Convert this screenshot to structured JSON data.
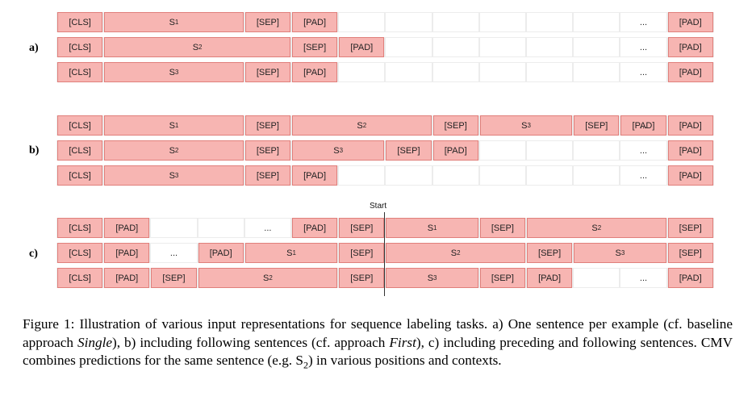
{
  "figure": {
    "start_label": "Start",
    "panels": [
      {
        "label": "a)",
        "rows": [
          [
            [
              "[CLS]",
              0,
              1,
              "tok"
            ],
            [
              "S1",
              1,
              3,
              "tok"
            ],
            [
              "[SEP]",
              4,
              1,
              "tok"
            ],
            [
              "[PAD]",
              5,
              1,
              "tok"
            ],
            [
              "...",
              12,
              1,
              "plain"
            ],
            [
              "[PAD]",
              13,
              1,
              "tok"
            ]
          ],
          [
            [
              "[CLS]",
              0,
              1,
              "tok"
            ],
            [
              "S2",
              1,
              4,
              "tok"
            ],
            [
              "[SEP]",
              5,
              1,
              "tok"
            ],
            [
              "[PAD]",
              6,
              1,
              "tok"
            ],
            [
              "...",
              12,
              1,
              "plain"
            ],
            [
              "[PAD]",
              13,
              1,
              "tok"
            ]
          ],
          [
            [
              "[CLS]",
              0,
              1,
              "tok"
            ],
            [
              "S3",
              1,
              3,
              "tok"
            ],
            [
              "[SEP]",
              4,
              1,
              "tok"
            ],
            [
              "[PAD]",
              5,
              1,
              "tok"
            ],
            [
              "...",
              12,
              1,
              "plain"
            ],
            [
              "[PAD]",
              13,
              1,
              "tok"
            ]
          ]
        ]
      },
      {
        "label": "b)",
        "rows": [
          [
            [
              "[CLS]",
              0,
              1,
              "tok"
            ],
            [
              "S1",
              1,
              3,
              "tok"
            ],
            [
              "[SEP]",
              4,
              1,
              "tok"
            ],
            [
              "S2",
              5,
              3,
              "tok"
            ],
            [
              "[SEP]",
              8,
              1,
              "tok"
            ],
            [
              "S3",
              9,
              2,
              "tok"
            ],
            [
              "[SEP]",
              11,
              1,
              "tok"
            ],
            [
              "[PAD]",
              12,
              1,
              "tok"
            ],
            [
              "...",
              13,
              1,
              "plain"
            ],
            [
              "[PAD]",
              13,
              1,
              "tok"
            ]
          ],
          [
            [
              "[CLS]",
              0,
              1,
              "tok"
            ],
            [
              "S2",
              1,
              3,
              "tok"
            ],
            [
              "[SEP]",
              4,
              1,
              "tok"
            ],
            [
              "S3",
              5,
              2,
              "tok"
            ],
            [
              "[SEP]",
              7,
              1,
              "tok"
            ],
            [
              "[PAD]",
              8,
              1,
              "tok"
            ],
            [
              "...",
              12,
              1,
              "plain"
            ],
            [
              "[PAD]",
              13,
              1,
              "tok"
            ]
          ],
          [
            [
              "[CLS]",
              0,
              1,
              "tok"
            ],
            [
              "S3",
              1,
              3,
              "tok"
            ],
            [
              "[SEP]",
              4,
              1,
              "tok"
            ],
            [
              "[PAD]",
              5,
              1,
              "tok"
            ],
            [
              "...",
              12,
              1,
              "plain"
            ],
            [
              "[PAD]",
              13,
              1,
              "tok"
            ]
          ]
        ]
      },
      {
        "label": "c)",
        "rows": [
          [
            [
              "[CLS]",
              0,
              1,
              "tok"
            ],
            [
              "[PAD]",
              1,
              1,
              "tok"
            ],
            [
              "...",
              4,
              1,
              "plain"
            ],
            [
              "[PAD]",
              5,
              1,
              "tok"
            ],
            [
              "[SEP]",
              6,
              1,
              "tok"
            ],
            [
              "S1",
              7,
              2,
              "tok"
            ],
            [
              "[SEP]",
              9,
              1,
              "tok"
            ],
            [
              "S2",
              10,
              3,
              "tok"
            ],
            [
              "[SEP]",
              13,
              1,
              "tok"
            ]
          ],
          [
            [
              "[CLS]",
              0,
              1,
              "tok"
            ],
            [
              "[PAD]",
              1,
              1,
              "tok"
            ],
            [
              "...",
              2,
              1,
              "plain"
            ],
            [
              "[PAD]",
              3,
              1,
              "tok"
            ],
            [
              "S1",
              4,
              2,
              "tok"
            ],
            [
              "[SEP]",
              6,
              1,
              "tok"
            ],
            [
              "S2",
              7,
              3,
              "tok"
            ],
            [
              "[SEP]",
              10,
              1,
              "tok"
            ],
            [
              "S3",
              11,
              2,
              "tok"
            ],
            [
              "[SEP]",
              13,
              1,
              "tok"
            ]
          ],
          [
            [
              "[CLS]",
              0,
              1,
              "tok"
            ],
            [
              "[PAD]",
              1,
              1,
              "tok"
            ],
            [
              "[SEP]",
              2,
              1,
              "tok"
            ],
            [
              "S2",
              3,
              3,
              "tok"
            ],
            [
              "[SEP]",
              6,
              1,
              "tok"
            ],
            [
              "S3",
              7,
              2,
              "tok"
            ],
            [
              "[SEP]",
              9,
              1,
              "tok"
            ],
            [
              "[PAD]",
              10,
              1,
              "tok"
            ],
            [
              "...",
              12,
              1,
              "plain"
            ],
            [
              "[PAD]",
              13,
              1,
              "tok"
            ]
          ]
        ]
      }
    ]
  },
  "caption": {
    "t1": "Figure 1:  Illustration of various input representations for sequence labeling tasks.  a) One sentence per example (cf. baseline approach ",
    "i1": "Single",
    "t2": "), b) including following sentences (cf. approach ",
    "i2": "First",
    "t3": "), c) including preceding and following sentences.  CMV combines predictions for the same sentence (e.g. S",
    "sub": "2",
    "t4": ") in various positions and contexts."
  }
}
